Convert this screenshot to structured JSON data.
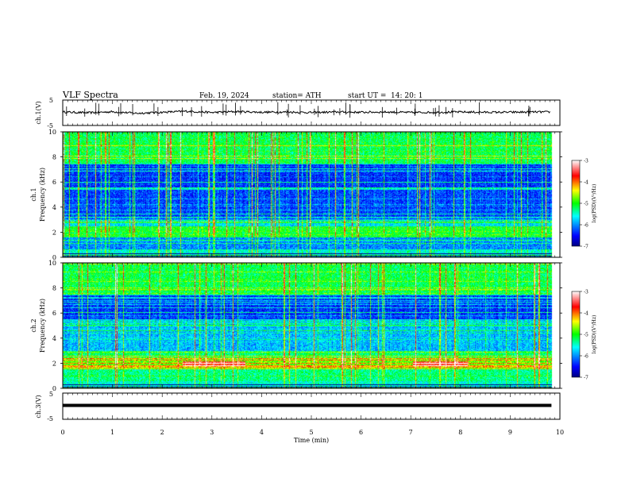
{
  "header": {
    "title": "VLF  Spectra",
    "date": "Feb. 19, 2024",
    "station": "station= ATH",
    "start_label": "start  UT  =",
    "start_time": "14: 20: 1"
  },
  "chart_data": [
    {
      "type": "line",
      "name": "ch1-waveform",
      "ylabel": "ch.1(V)",
      "ylim": [
        -5,
        5
      ],
      "xlim": [
        0,
        10
      ],
      "x": [
        0,
        0.5,
        1,
        1.5,
        2,
        2.5,
        3,
        3.5,
        4,
        4.5,
        5,
        5.5,
        6,
        6.5,
        7,
        7.5,
        8,
        8.5,
        9,
        9.5,
        9.8
      ],
      "y": [
        0.3,
        0.0,
        0.4,
        -0.2,
        0.2,
        0.6,
        0.1,
        0.5,
        0.2,
        0.3,
        0.1,
        0.3,
        0.2,
        0.3,
        0.1,
        0.2,
        0.3,
        0.2,
        0.2,
        0.3,
        0.3
      ],
      "y_ticks": [
        "5",
        "-5"
      ]
    },
    {
      "type": "heatmap",
      "name": "ch1-spectrogram",
      "ylabel_line1": "ch.1",
      "ylabel_line2": "Frequency (kHz)",
      "ylim": [
        0,
        10
      ],
      "xlim": [
        0,
        10
      ],
      "y_ticks": [
        "0",
        "2",
        "4",
        "6",
        "8",
        "10"
      ],
      "colorbar_label": "log(PSD)(V²/Hz)",
      "colorbar_ticks": [
        "-3",
        "-4",
        "-5",
        "-6",
        "-7"
      ],
      "colorbar_range": [
        -7,
        -3
      ],
      "data_end_min": 9.83
    },
    {
      "type": "heatmap",
      "name": "ch2-spectrogram",
      "ylabel_line1": "ch.2",
      "ylabel_line2": "Frequency (kHz)",
      "ylim": [
        0,
        10
      ],
      "xlim": [
        0,
        10
      ],
      "y_ticks": [
        "0",
        "2",
        "4",
        "6",
        "8",
        "10"
      ],
      "colorbar_label": "log(PSD)(V²/Hz)",
      "colorbar_ticks": [
        "-3",
        "-4",
        "-5",
        "-6",
        "-7"
      ],
      "colorbar_range": [
        -7,
        -3
      ],
      "data_end_min": 9.83
    },
    {
      "type": "line",
      "name": "ch3-waveform",
      "ylabel": "ch.3(V)",
      "ylim": [
        -5,
        5
      ],
      "xlim": [
        0,
        10
      ],
      "x": [
        0,
        9.83
      ],
      "y": [
        0,
        0
      ],
      "y_ticks": [
        "5",
        "-5"
      ]
    }
  ],
  "x_axis": {
    "label": "Time  (min)",
    "ticks": [
      "0",
      "1",
      "2",
      "3",
      "4",
      "5",
      "6",
      "7",
      "8",
      "9",
      "10"
    ]
  },
  "colormap": [
    "#000080",
    "#0000ff",
    "#00ffff",
    "#00ff00",
    "#ffff00",
    "#ff0000",
    "#ffffff"
  ]
}
